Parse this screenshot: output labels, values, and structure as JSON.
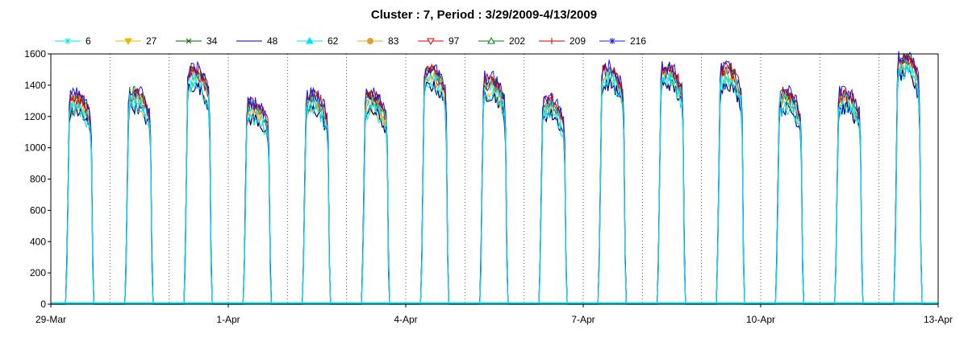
{
  "chart_data": {
    "type": "line",
    "title": "Cluster : 7, Period : 3/29/2009-4/13/2009",
    "xlabel": "",
    "ylabel": "",
    "x_start": "2009-03-29",
    "x_end": "2009-04-13",
    "x_tick_labels": [
      "29-Mar",
      "1-Apr",
      "4-Apr",
      "7-Apr",
      "10-Apr",
      "13-Apr"
    ],
    "ylim": [
      0,
      1600
    ],
    "y_ticks": [
      0,
      200,
      400,
      600,
      800,
      1000,
      1200,
      1400,
      1600
    ],
    "grid": "vertical dotted, daily",
    "legend_position": "top",
    "series": [
      {
        "name": "6",
        "color": "#00e5ee",
        "marker": "asterisk"
      },
      {
        "name": "27",
        "color": "#e6b800",
        "marker": "triangle-down"
      },
      {
        "name": "34",
        "color": "#006400",
        "marker": "x"
      },
      {
        "name": "48",
        "color": "#00008b",
        "marker": "none"
      },
      {
        "name": "62",
        "color": "#00e5ee",
        "marker": "triangle-up"
      },
      {
        "name": "83",
        "color": "#e0a030",
        "marker": "circle"
      },
      {
        "name": "97",
        "color": "#dd0000",
        "marker": "triangle-down-open"
      },
      {
        "name": "202",
        "color": "#008000",
        "marker": "triangle-up-open"
      },
      {
        "name": "209",
        "color": "#cc0000",
        "marker": "plus"
      },
      {
        "name": "216",
        "color": "#1c1cdd",
        "marker": "asterisk"
      }
    ],
    "daily_peaks": [
      {
        "day": "2009-03-29",
        "peak": 1350
      },
      {
        "day": "2009-03-30",
        "peak": 1380
      },
      {
        "day": "2009-03-31",
        "peak": 1520
      },
      {
        "day": "2009-04-01",
        "peak": 1300
      },
      {
        "day": "2009-04-02",
        "peak": 1360
      },
      {
        "day": "2009-04-03",
        "peak": 1350
      },
      {
        "day": "2009-04-04",
        "peak": 1520
      },
      {
        "day": "2009-04-05",
        "peak": 1460
      },
      {
        "day": "2009-04-06",
        "peak": 1330
      },
      {
        "day": "2009-04-07",
        "peak": 1530
      },
      {
        "day": "2009-04-08",
        "peak": 1530
      },
      {
        "day": "2009-04-09",
        "peak": 1530
      },
      {
        "day": "2009-04-10",
        "peak": 1370
      },
      {
        "day": "2009-04-11",
        "peak": 1370
      },
      {
        "day": "2009-04-12",
        "peak": 1600
      }
    ]
  }
}
